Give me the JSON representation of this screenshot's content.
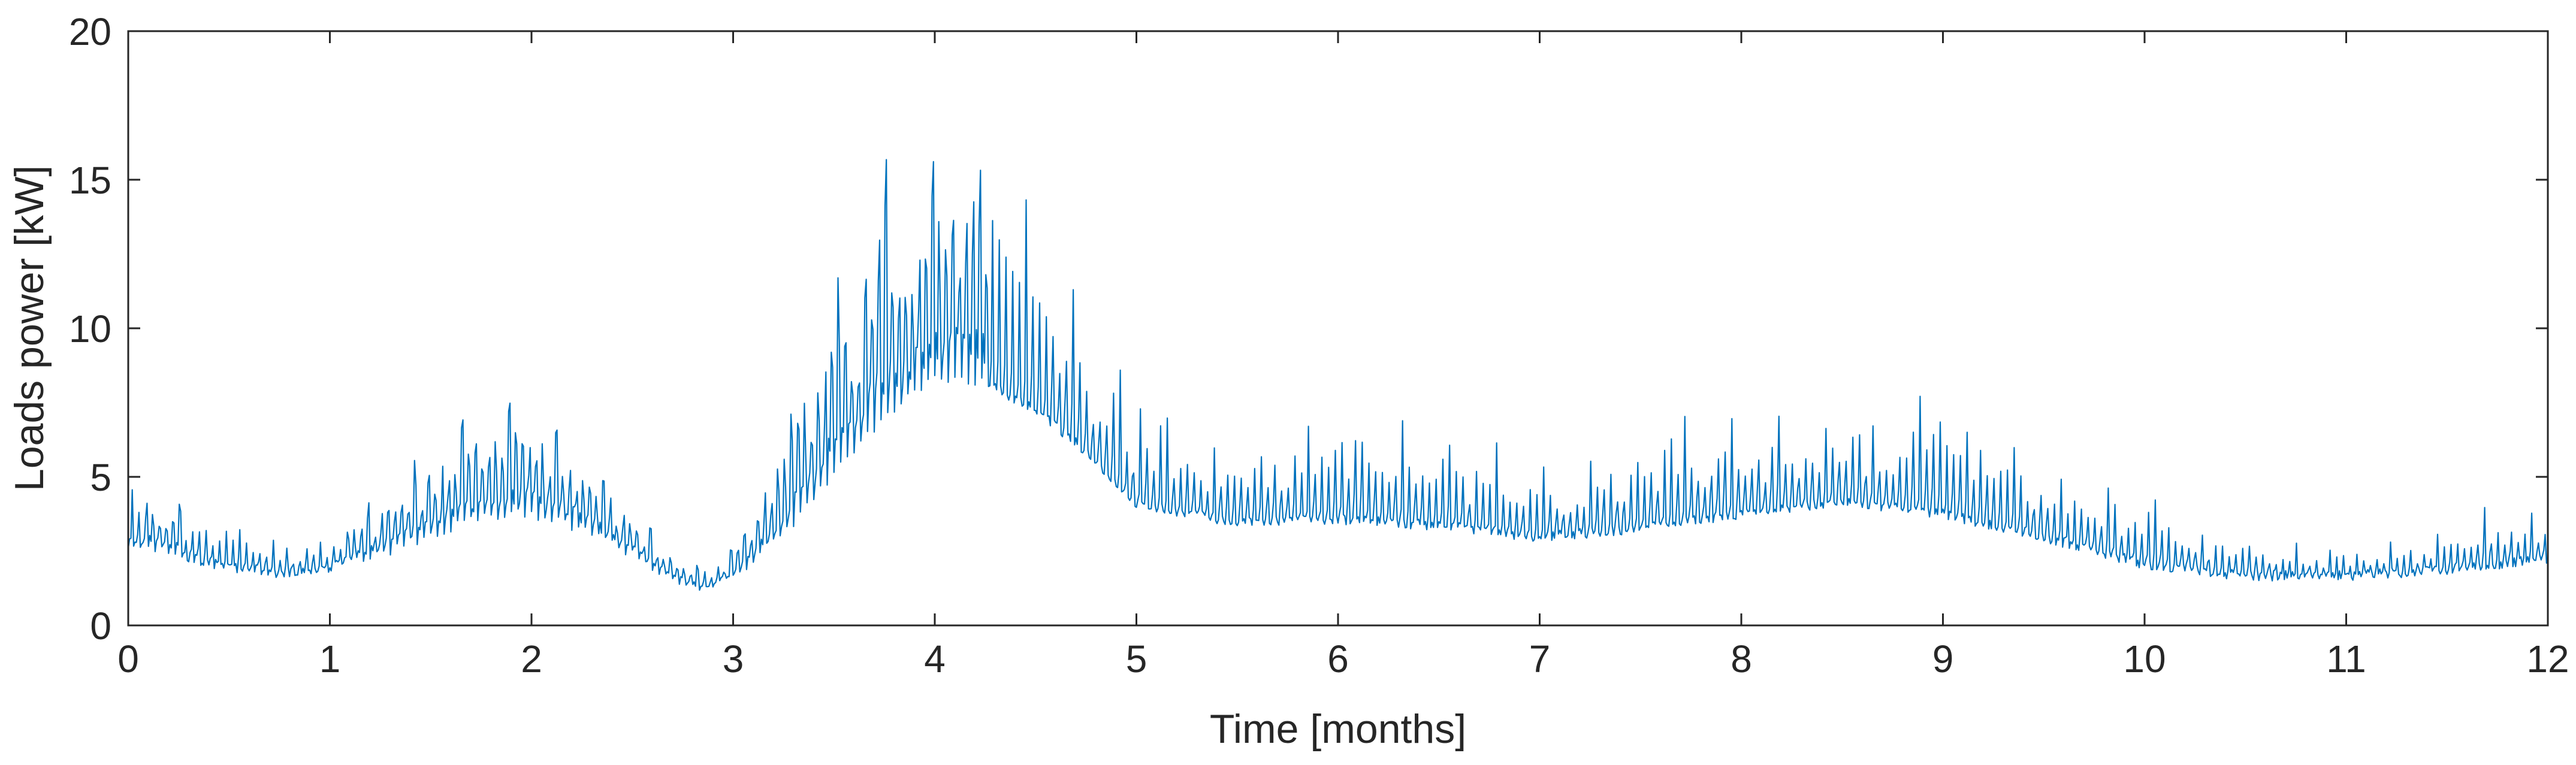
{
  "chart_data": {
    "type": "line",
    "title": "",
    "xlabel": "Time [months]",
    "ylabel": "Loads power [kW]",
    "xlim": [
      0,
      12
    ],
    "ylim": [
      0,
      20
    ],
    "xticks": [
      0,
      1,
      2,
      3,
      4,
      5,
      6,
      7,
      8,
      9,
      10,
      11,
      12
    ],
    "yticks": [
      0,
      5,
      10,
      15,
      20
    ],
    "grid": false,
    "legend": "none",
    "series": [
      {
        "color": "#0072BD",
        "baseline": {
          "x": [
            0,
            0.25,
            0.5,
            0.75,
            1.0,
            1.25,
            1.5,
            1.75,
            2.0,
            2.25,
            2.5,
            2.75,
            2.85,
            3.0,
            3.25,
            3.5,
            3.75,
            4.0,
            4.25,
            4.5,
            4.75,
            5.0,
            5.5,
            6.0,
            6.5,
            7.0,
            7.5,
            8.0,
            8.5,
            9.0,
            9.5,
            10.0,
            10.5,
            11.0,
            11.5,
            12.0
          ],
          "y": [
            2.7,
            2.3,
            1.9,
            1.7,
            1.9,
            2.3,
            3.0,
            3.6,
            3.7,
            3.2,
            2.3,
            1.4,
            1.1,
            1.6,
            3.0,
            5.0,
            7.0,
            8.2,
            8.1,
            7.2,
            5.8,
            4.0,
            3.4,
            3.5,
            3.3,
            2.9,
            3.2,
            3.7,
            4.1,
            3.7,
            2.9,
            2.0,
            1.6,
            1.6,
            1.8,
            2.2
          ]
        },
        "peaks": {
          "x": [
            0.05,
            0.3,
            0.55,
            0.8,
            1.05,
            1.3,
            1.5,
            1.7,
            1.95,
            2.15,
            2.4,
            2.65,
            2.9,
            3.1,
            3.3,
            3.5,
            3.6,
            3.75,
            3.85,
            4.0,
            4.1,
            4.25,
            4.35,
            4.5,
            4.7,
            4.9,
            5.1,
            5.3,
            5.5,
            5.75,
            6.0,
            6.25,
            6.5,
            6.75,
            7.0,
            7.25,
            7.5,
            7.75,
            7.9,
            8.1,
            8.3,
            8.5,
            8.7,
            8.9,
            9.1,
            9.3,
            9.6,
            9.8,
            10.1,
            10.4,
            10.7,
            10.9,
            11.2,
            11.5,
            11.75,
            11.9
          ],
          "y": [
            5.0,
            4.3,
            3.8,
            3.0,
            3.3,
            5.0,
            6.0,
            7.2,
            8.1,
            7.0,
            5.0,
            2.8,
            2.0,
            4.0,
            8.0,
            12.9,
            11.0,
            16.7,
            14.0,
            16.8,
            16.5,
            16.3,
            15.0,
            14.8,
            11.5,
            9.0,
            7.8,
            6.6,
            6.5,
            6.8,
            7.8,
            7.6,
            6.8,
            6.4,
            5.4,
            6.2,
            7.0,
            7.5,
            8.3,
            8.0,
            7.8,
            7.8,
            7.0,
            8.2,
            7.5,
            6.8,
            5.5,
            5.0,
            4.1,
            3.4,
            2.9,
            2.8,
            2.8,
            3.3,
            4.5,
            3.8
          ]
        }
      }
    ]
  }
}
